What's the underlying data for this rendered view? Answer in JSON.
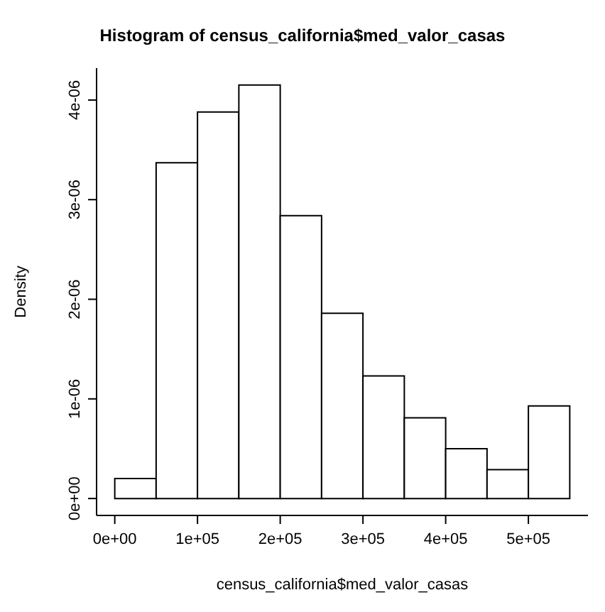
{
  "chart_data": {
    "type": "histogram",
    "title": "Histogram of census_california$med_valor_casas",
    "xlabel": "census_california$med_valor_casas",
    "ylabel": "Density",
    "bins": [
      0,
      50000,
      100000,
      150000,
      200000,
      250000,
      300000,
      350000,
      400000,
      450000,
      500000,
      550000
    ],
    "values": [
      2e-07,
      3.37e-06,
      3.88e-06,
      4.15e-06,
      2.84e-06,
      1.86e-06,
      1.23e-06,
      8.1e-07,
      5e-07,
      2.9e-07,
      9.3e-07
    ],
    "color": "#ffffff",
    "xlim": [
      -22000,
      572000
    ],
    "xticks": [
      {
        "value": 0,
        "label": "0e+00"
      },
      {
        "value": 100000,
        "label": "1e+05"
      },
      {
        "value": 200000,
        "label": "2e+05"
      },
      {
        "value": 300000,
        "label": "3e+05"
      },
      {
        "value": 400000,
        "label": "4e+05"
      },
      {
        "value": 500000,
        "label": "5e+05"
      }
    ],
    "ylim": [
      -1.7e-07,
      4.32e-06
    ],
    "yticks": [
      {
        "value": 0,
        "label": "0e+00"
      },
      {
        "value": 1e-06,
        "label": "1e-06"
      },
      {
        "value": 2e-06,
        "label": "2e-06"
      },
      {
        "value": 3e-06,
        "label": "3e-06"
      },
      {
        "value": 4e-06,
        "label": "4e-06"
      }
    ],
    "grid": false
  }
}
